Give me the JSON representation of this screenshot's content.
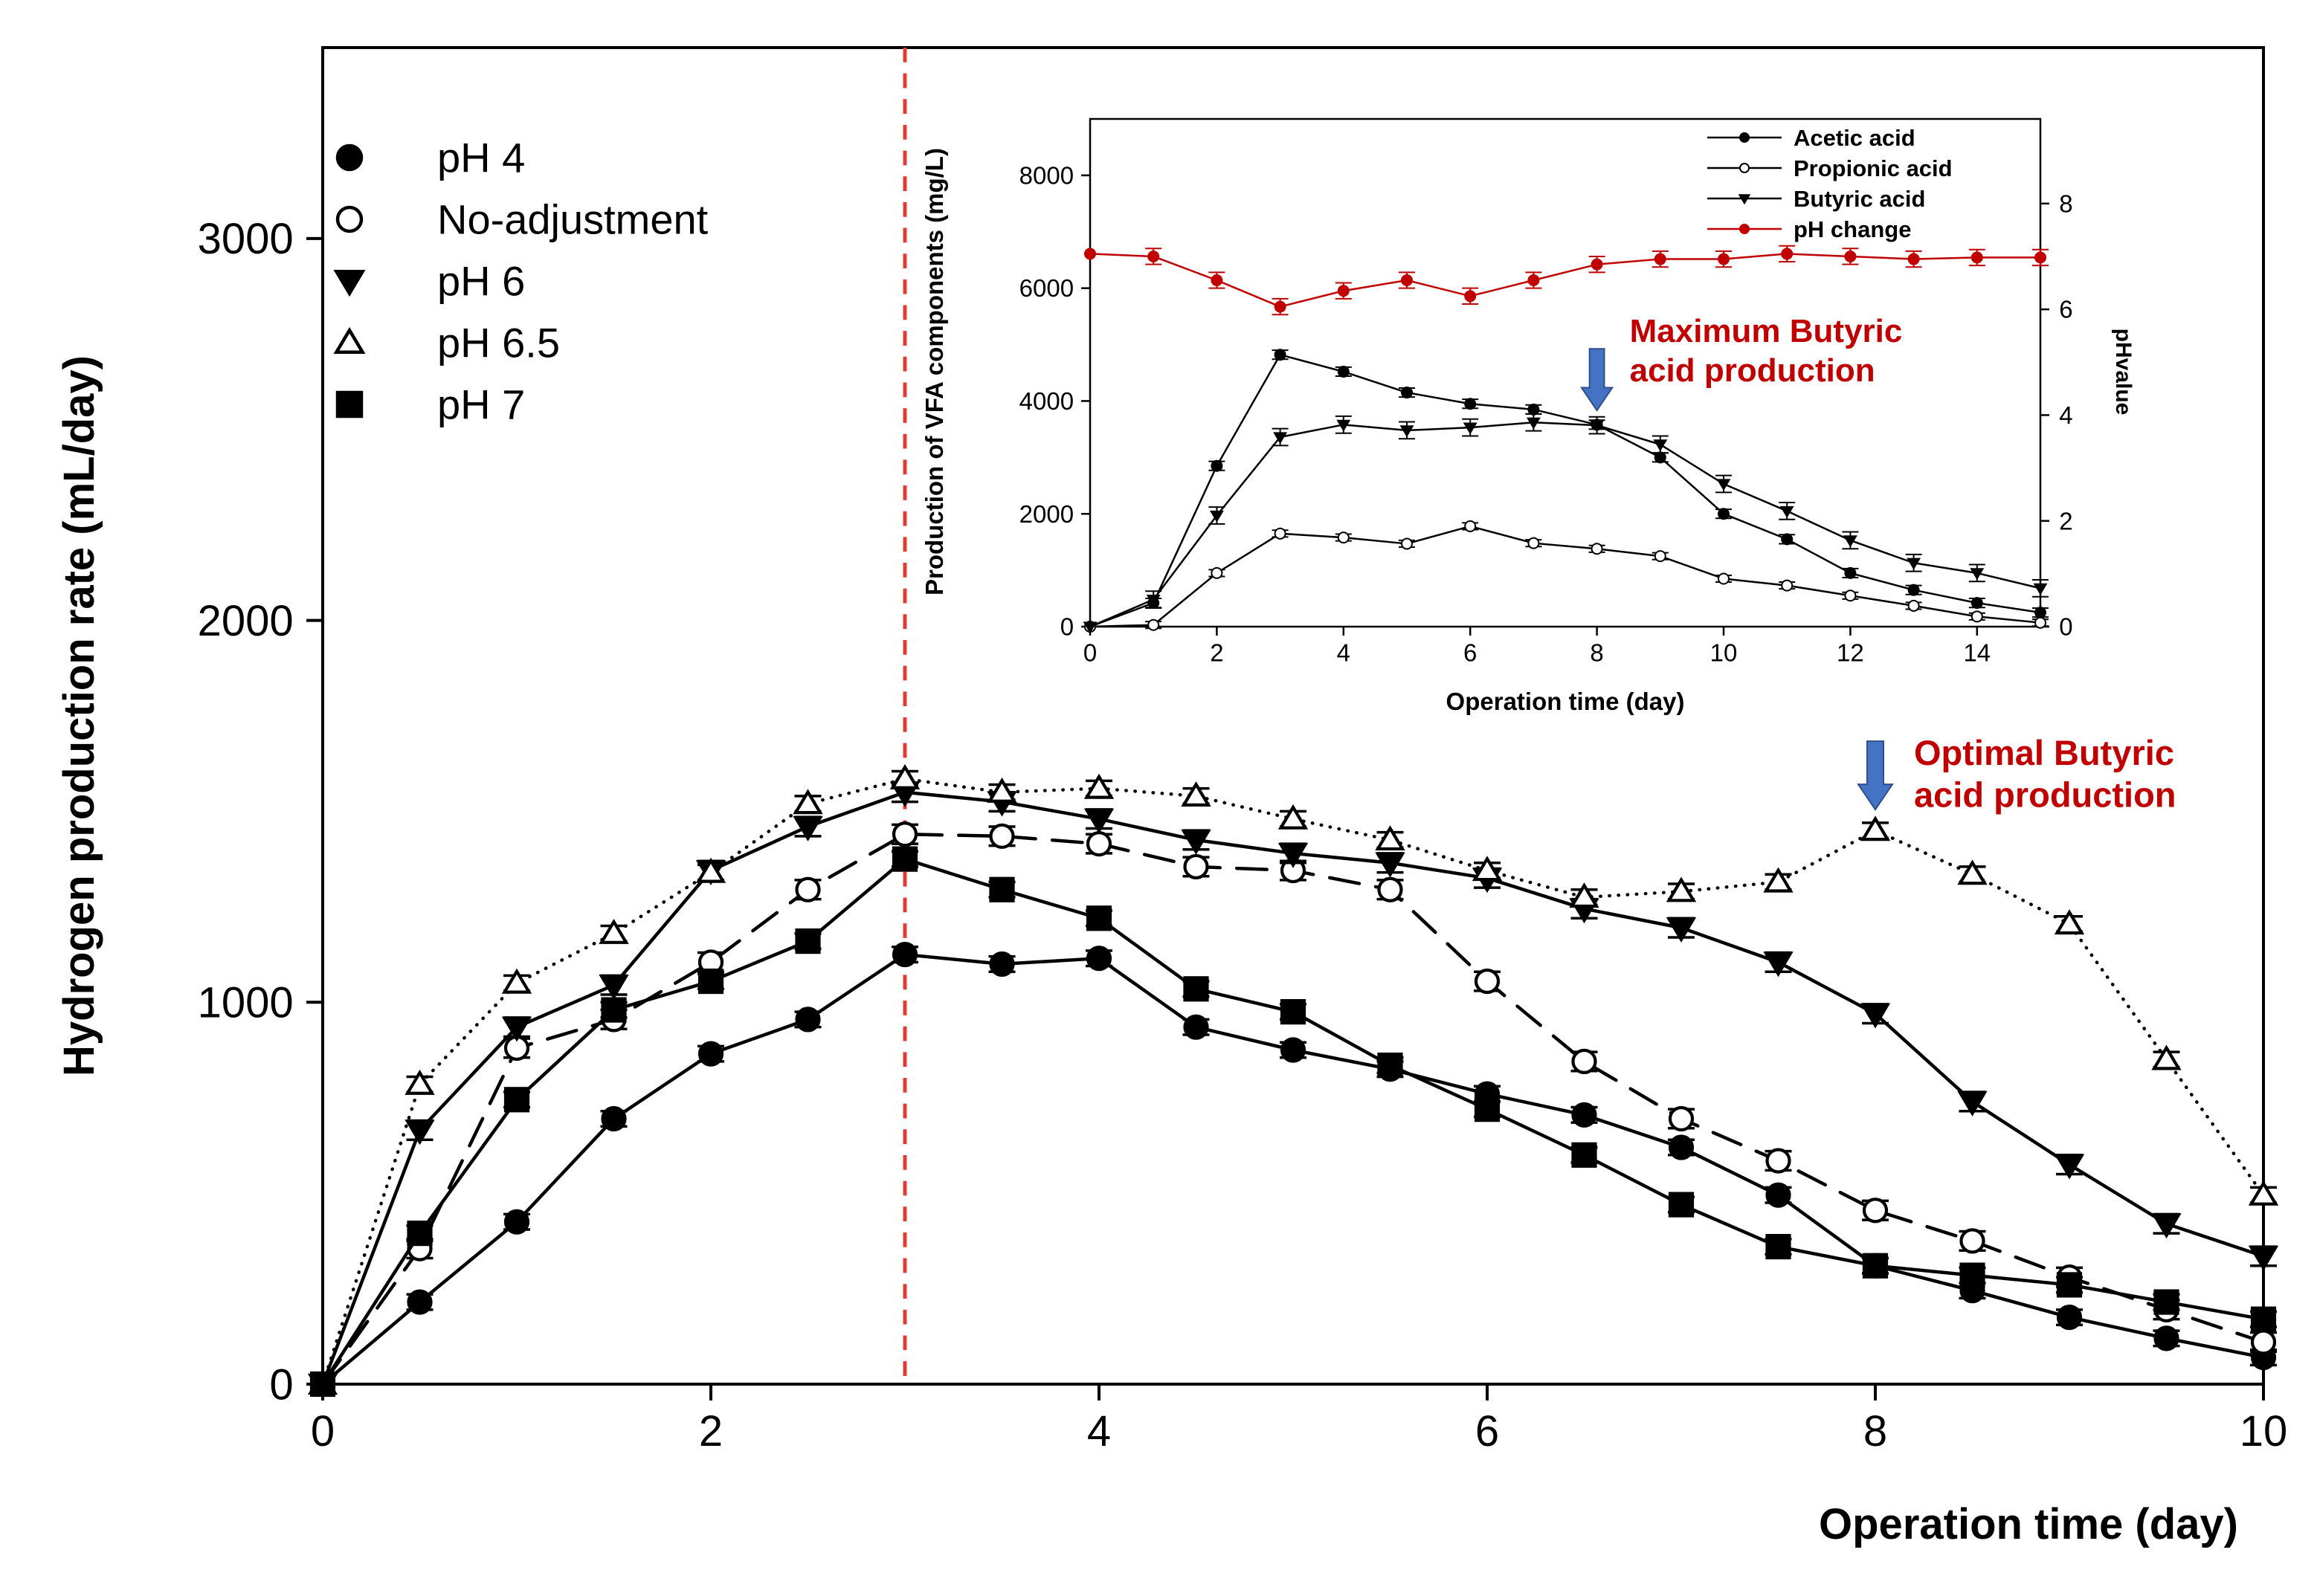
{
  "chart_data": [
    {
      "type": "line",
      "title": "",
      "xlabel": "Operation time (day)",
      "ylabel": "Hydrogen production rate (mL/day)",
      "xlim": [
        0,
        10
      ],
      "ylim": [
        0,
        3500
      ],
      "xticks": [
        0,
        2,
        4,
        6,
        8,
        10
      ],
      "yticks": [
        0,
        1000,
        2000,
        3000
      ],
      "x": [
        0,
        0.5,
        1,
        1.5,
        2,
        2.5,
        3,
        3.5,
        4,
        4.5,
        5,
        5.5,
        6,
        6.5,
        7,
        7.5,
        8,
        8.5,
        9,
        9.5,
        10
      ],
      "legend_position": "top-left",
      "series": [
        {
          "name": "pH 4",
          "marker": "circle-filled",
          "dash": "solid",
          "error": 20,
          "values": [
            0,
            215,
            425,
            695,
            865,
            955,
            1125,
            1100,
            1115,
            935,
            875,
            825,
            760,
            705,
            620,
            495,
            310,
            245,
            175,
            120,
            70
          ]
        },
        {
          "name": "No-adjustment",
          "marker": "circle-open",
          "dash": "longdash",
          "error": 25,
          "values": [
            0,
            355,
            880,
            955,
            1105,
            1295,
            1440,
            1435,
            1415,
            1355,
            1345,
            1295,
            1055,
            845,
            695,
            585,
            455,
            375,
            280,
            195,
            110
          ]
        },
        {
          "name": "pH 6",
          "marker": "triangle-down-filled",
          "dash": "solid",
          "error": 25,
          "values": [
            0,
            665,
            935,
            1045,
            1345,
            1460,
            1550,
            1525,
            1480,
            1425,
            1390,
            1365,
            1325,
            1245,
            1195,
            1105,
            970,
            740,
            575,
            420,
            335
          ]
        },
        {
          "name": "pH 6.5",
          "marker": "triangle-up-open",
          "dash": "dotted",
          "error": 20,
          "values": [
            0,
            785,
            1050,
            1180,
            1340,
            1520,
            1585,
            1550,
            1560,
            1540,
            1480,
            1425,
            1345,
            1275,
            1290,
            1315,
            1450,
            1335,
            1205,
            850,
            495
          ]
        },
        {
          "name": "pH 7",
          "marker": "square-filled",
          "dash": "solid",
          "error": 20,
          "values": [
            0,
            395,
            745,
            980,
            1055,
            1160,
            1375,
            1295,
            1220,
            1035,
            975,
            835,
            720,
            600,
            470,
            360,
            310,
            285,
            260,
            215,
            170
          ]
        }
      ],
      "vline": {
        "x": 3,
        "color": "#e03c31",
        "style": "dashed"
      },
      "annotation": {
        "x": 8,
        "text_line1": "Optimal Butyric",
        "text_line2": "acid production",
        "text_color": "#c00000",
        "arrow_color": "#4472c4"
      }
    },
    {
      "type": "line",
      "title": "",
      "xlabel": "Operation time (day)",
      "ylabel": "Production of VFA components (mg/L)",
      "y2label": "pHvalue",
      "xlim": [
        0,
        15
      ],
      "ylim": [
        0,
        9000
      ],
      "y2lim": [
        0,
        9.6
      ],
      "xticks": [
        0,
        2,
        4,
        6,
        8,
        10,
        12,
        14
      ],
      "yticks": [
        0,
        2000,
        4000,
        6000,
        8000
      ],
      "y2ticks": [
        0,
        2,
        4,
        6,
        8
      ],
      "x": [
        0,
        1,
        2,
        3,
        4,
        5,
        6,
        7,
        8,
        9,
        10,
        11,
        12,
        13,
        14,
        15
      ],
      "legend_position": "top-right",
      "series": [
        {
          "name": "Acetic acid",
          "marker": "circle-filled",
          "color": "#000000",
          "axis": "left",
          "error": 80,
          "values": [
            0,
            420,
            2850,
            4820,
            4520,
            4150,
            3950,
            3850,
            3580,
            3000,
            2000,
            1550,
            950,
            650,
            420,
            250
          ]
        },
        {
          "name": "Propionic acid",
          "marker": "circle-open",
          "color": "#000000",
          "axis": "left",
          "error": 60,
          "values": [
            0,
            30,
            950,
            1650,
            1580,
            1470,
            1780,
            1480,
            1380,
            1250,
            850,
            730,
            550,
            370,
            180,
            70
          ]
        },
        {
          "name": "Butyric acid",
          "marker": "triangle-down-filled",
          "color": "#000000",
          "axis": "left",
          "error": 150,
          "values": [
            0,
            480,
            1970,
            3360,
            3580,
            3480,
            3530,
            3620,
            3570,
            3230,
            2530,
            2050,
            1530,
            1130,
            950,
            680
          ]
        },
        {
          "name": "pH change",
          "marker": "circle-filled",
          "color": "#c00000",
          "axis": "right",
          "error": 0.15,
          "values": [
            7.05,
            7.0,
            6.55,
            6.05,
            6.35,
            6.55,
            6.25,
            6.55,
            6.85,
            6.95,
            6.95,
            7.05,
            7.0,
            6.95,
            6.98,
            6.98
          ]
        }
      ],
      "annotation": {
        "x": 8,
        "text_line1": "Maximum Butyric",
        "text_line2": "acid production",
        "text_color": "#c00000",
        "arrow_color": "#4472c4"
      }
    }
  ]
}
